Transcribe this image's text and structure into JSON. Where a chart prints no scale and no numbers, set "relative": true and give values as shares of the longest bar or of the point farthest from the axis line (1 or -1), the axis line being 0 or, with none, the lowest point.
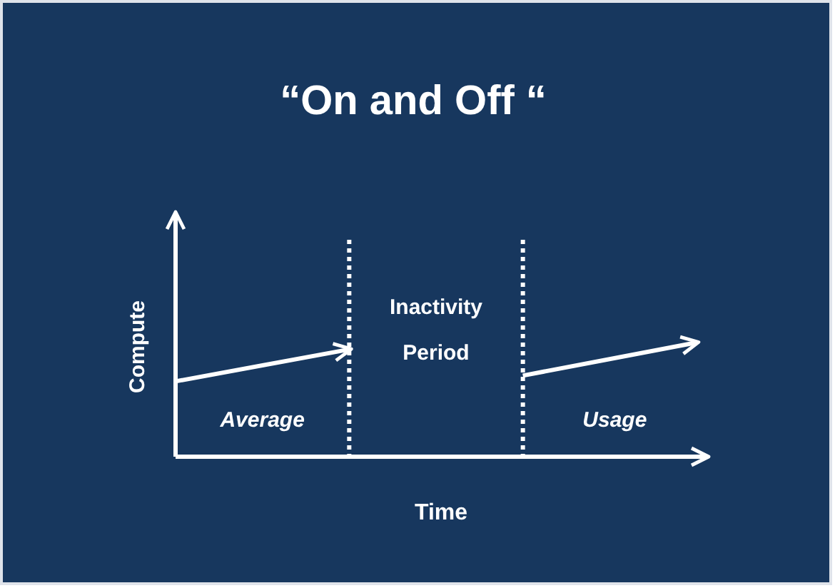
{
  "chart_data": {
    "type": "line",
    "title": "“On and Off “",
    "xlabel": "Time",
    "ylabel": "Compute",
    "relative": true,
    "categories": [
      null,
      null,
      null,
      null
    ],
    "line_style": "solid",
    "series": [
      {
        "color": "#ffffff",
        "values": [
          0.66,
          0.94,
          null,
          null
        ]
      },
      {
        "color": "#ffffff",
        "values": [
          null,
          null,
          0.71,
          1
        ]
      }
    ],
    "annotations": [
      "Average",
      "Inactivity Period",
      "Usage"
    ]
  }
}
